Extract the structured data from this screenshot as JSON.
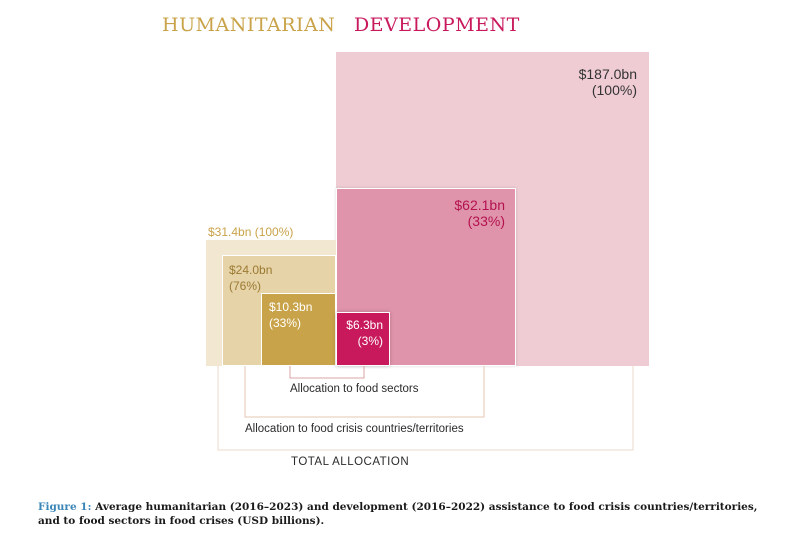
{
  "legend": {
    "humanitarian": "HUMANITARIAN",
    "development": "DEVELOPMENT",
    "humanitarian_color": "#c9a349",
    "development_color": "#c8195c"
  },
  "boxes": {
    "dev_total": {
      "amount": "$187.0bn",
      "share": "(100%)",
      "color": "#efccd4"
    },
    "dev_crisis": {
      "amount": "$62.1bn",
      "share": "(33%)",
      "color": "#e094ab"
    },
    "dev_food": {
      "amount": "$6.3bn",
      "share": "(3%)",
      "color": "#c8195c"
    },
    "hum_total": {
      "label": "$31.4bn (100%)",
      "color": "#f2e8d2"
    },
    "hum_crisis": {
      "amount": "$24.0bn",
      "share": "(76%)",
      "color": "#e7d3a8"
    },
    "hum_food": {
      "amount": "$10.3bn",
      "share": "(33%)",
      "color": "#c9a349"
    }
  },
  "brackets": {
    "food_sectors": "Allocation to food sectors",
    "crisis_countries": "Allocation to food crisis countries/territories",
    "total": "TOTAL ALLOCATION"
  },
  "caption": {
    "figure": "Figure 1:",
    "text": "Average humanitarian (2016–2023) and development (2016–2022) assistance to food crisis countries/territories, and to food sectors in food crises (USD billions)."
  },
  "chart_data": {
    "type": "area",
    "series": [
      {
        "name": "HUMANITARIAN",
        "categories": [
          "Total allocation",
          "Allocation to food crisis countries/territories",
          "Allocation to food sectors"
        ],
        "values": [
          31.4,
          24.0,
          10.3
        ],
        "percent": [
          100,
          76,
          33
        ]
      },
      {
        "name": "DEVELOPMENT",
        "categories": [
          "Total allocation",
          "Allocation to food crisis countries/territories",
          "Allocation to food sectors"
        ],
        "values": [
          187.0,
          62.1,
          6.3
        ],
        "percent": [
          100,
          33,
          3
        ]
      }
    ],
    "unit": "USD billions"
  }
}
